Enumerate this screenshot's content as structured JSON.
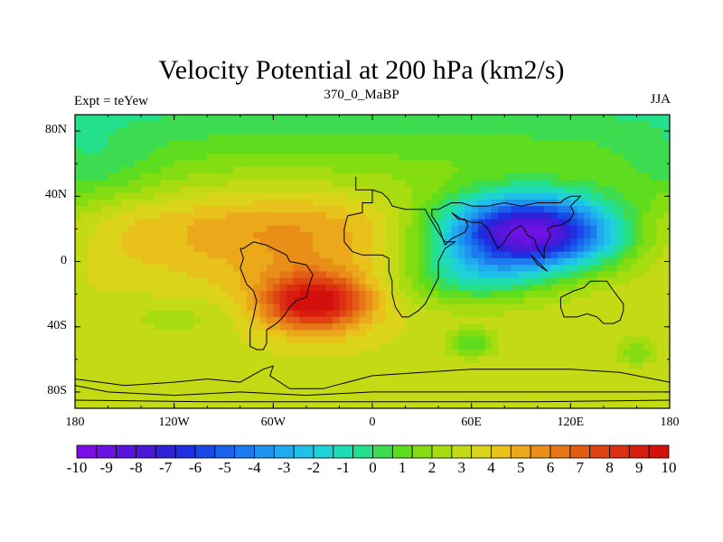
{
  "title": "Velocity Potential at 200 hPa (km2/s)",
  "left_string": "Expt = teYew",
  "center_string": "370_0_MaBP",
  "right_string": "JJA",
  "lon_ticks": [
    "180",
    "120W",
    "60W",
    "0",
    "60E",
    "120E",
    "180"
  ],
  "lat_ticks": [
    "80N",
    "40N",
    "0",
    "40S",
    "80S"
  ],
  "colorbar_labels": [
    "-10",
    "-9",
    "-8",
    "-7",
    "-6",
    "-5",
    "-4",
    "-3",
    "-2",
    "-1",
    "0",
    "1",
    "2",
    "3",
    "4",
    "5",
    "6",
    "7",
    "8",
    "9",
    "10"
  ],
  "colors": [
    "#7a0de8",
    "#6c12e3",
    "#5b14dc",
    "#4a18d6",
    "#3020d8",
    "#1d2fe0",
    "#1848e6",
    "#1a62ec",
    "#1c7cef",
    "#1f94ef",
    "#20aaef",
    "#1fc0ea",
    "#1fd2d8",
    "#1fdcb5",
    "#25e08a",
    "#3ddc50",
    "#5edd1e",
    "#84dd10",
    "#a6dc10",
    "#c4da14",
    "#dcd41a",
    "#e8c11b",
    "#eaa81a",
    "#e98f18",
    "#e67616",
    "#e35c14",
    "#e04312",
    "#dc2e10",
    "#d81d0e",
    "#d3100c"
  ],
  "chart_data": {
    "type": "heatmap",
    "title": "Velocity Potential at 200 hPa (km2/s)",
    "xlabel": "",
    "ylabel": "",
    "xlim": [
      -180,
      180
    ],
    "ylim": [
      -90,
      90
    ],
    "colorbar_range": [
      -10,
      10
    ],
    "features": [
      {
        "label": "minimum",
        "lon": 95,
        "lat": 18,
        "value": -10
      },
      {
        "label": "maximum",
        "lon": -35,
        "lat": -25,
        "value": 10
      },
      {
        "label": "local minimum",
        "lon": 60,
        "lat": -50,
        "value": 0
      },
      {
        "label": "local minimum",
        "lon": 160,
        "lat": -55,
        "value": 0
      }
    ]
  }
}
